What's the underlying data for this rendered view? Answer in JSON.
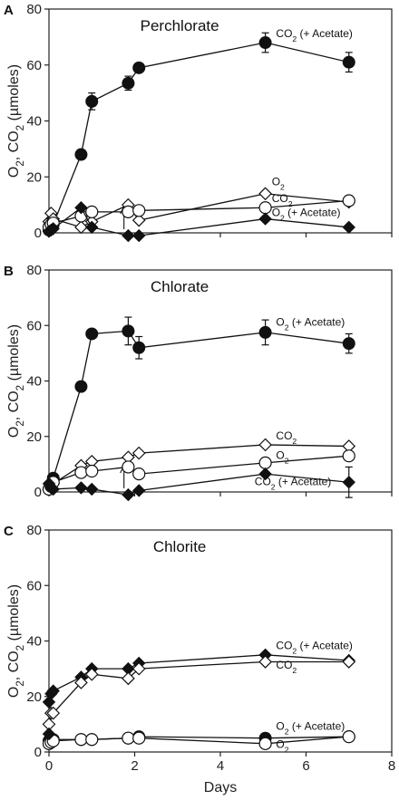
{
  "chart_data": [
    {
      "panel_label": "A",
      "title": "Perchlorate",
      "type": "line",
      "xlabel": "",
      "ylabel": "O₂, CO₂ (µmoles)",
      "xlim": [
        0,
        8
      ],
      "ylim": [
        0,
        80
      ],
      "yticks": [
        0,
        20,
        40,
        60,
        80
      ],
      "xticks": [],
      "arrow_at_day": 1.75,
      "series": [
        {
          "marker": "filled-circle",
          "label": "CO₂ (+ Acetate)",
          "x": [
            0,
            0.05,
            0.1,
            0.75,
            1.0,
            1.85,
            2.1,
            5.05,
            7.0
          ],
          "y": [
            1,
            2,
            3,
            28,
            47,
            53.5,
            59,
            68,
            61
          ],
          "err": [
            0,
            0,
            0,
            0,
            3,
            2.5,
            0,
            3.5,
            3.5
          ]
        },
        {
          "marker": "open-diamond",
          "label": "O₂",
          "x": [
            0,
            0.05,
            0.1,
            0.75,
            1.0,
            1.85,
            2.1,
            5.05,
            7.0
          ],
          "y": [
            4,
            7,
            5,
            2,
            4,
            10,
            4.5,
            14,
            11
          ],
          "err": [
            0,
            0,
            0,
            0,
            0,
            0,
            0,
            0,
            0
          ]
        },
        {
          "marker": "open-circle",
          "label": "CO₂",
          "x": [
            0,
            0.05,
            0.1,
            0.75,
            1.0,
            1.85,
            2.1,
            5.05,
            7.0
          ],
          "y": [
            2,
            3,
            3.5,
            6,
            7.5,
            7.5,
            8,
            9,
            11.5
          ],
          "err": [
            0,
            0,
            0,
            0,
            0,
            0,
            0,
            0,
            0
          ]
        },
        {
          "marker": "filled-diamond",
          "label": "O₂ (+ Acetate)",
          "x": [
            0,
            0.05,
            0.1,
            0.75,
            1.0,
            1.85,
            2.1,
            5.05,
            7.0
          ],
          "y": [
            0.5,
            1,
            1.5,
            9,
            2,
            -1,
            -1,
            5,
            2
          ],
          "err": [
            0,
            0,
            0,
            0,
            0,
            0,
            0,
            0,
            0
          ]
        }
      ],
      "annotations": [
        {
          "text": "CO₂ (+ Acetate)",
          "x": 5.3,
          "y": 70
        },
        {
          "text": "O₂",
          "x": 5.2,
          "y": 17
        },
        {
          "text": "CO₂",
          "x": 5.2,
          "y": 11
        },
        {
          "text": "O₂ (+ Acetate)",
          "x": 5.2,
          "y": 6
        }
      ]
    },
    {
      "panel_label": "B",
      "title": "Chlorate",
      "type": "line",
      "xlabel": "",
      "ylabel": "O₂, CO₂ (µmoles)",
      "xlim": [
        0,
        8
      ],
      "ylim": [
        0,
        80
      ],
      "yticks": [
        0,
        20,
        40,
        60,
        80
      ],
      "xticks": [],
      "arrow_at_day": 1.75,
      "series": [
        {
          "marker": "filled-circle",
          "label": "O₂ (+ Acetate)",
          "x": [
            0,
            0.05,
            0.1,
            0.75,
            1.0,
            1.85,
            2.1,
            5.05,
            7.0
          ],
          "y": [
            1,
            2,
            5,
            38,
            57,
            58,
            52,
            57.5,
            53.5
          ],
          "err": [
            0,
            0,
            0,
            0,
            0,
            5,
            4,
            4.5,
            3.5
          ]
        },
        {
          "marker": "open-diamond",
          "label": "CO₂",
          "x": [
            0,
            0.05,
            0.1,
            0.75,
            1.0,
            1.85,
            2.1,
            5.05,
            7.0
          ],
          "y": [
            1,
            2,
            3,
            9.5,
            11,
            12.5,
            14,
            17,
            16.5
          ],
          "err": [
            0,
            0,
            0,
            0,
            0,
            0,
            0,
            0,
            0
          ]
        },
        {
          "marker": "open-circle",
          "label": "O₂",
          "x": [
            0,
            0.05,
            0.1,
            0.75,
            1.0,
            1.85,
            2.1,
            5.05,
            7.0
          ],
          "y": [
            1,
            2,
            3.5,
            7,
            7.5,
            9,
            6.5,
            10.5,
            13
          ],
          "err": [
            0,
            0,
            0,
            0,
            0,
            0,
            0,
            0,
            0
          ]
        },
        {
          "marker": "filled-diamond",
          "label": "CO₂ (+ Acetate)",
          "x": [
            0,
            0.05,
            0.1,
            0.75,
            1.0,
            1.85,
            2.1,
            5.05,
            7.0
          ],
          "y": [
            3,
            1.5,
            1,
            1.5,
            1,
            -1,
            0.5,
            6.5,
            3.5
          ],
          "err": [
            0,
            0,
            0,
            0,
            0,
            0,
            0,
            0,
            5.5
          ]
        }
      ],
      "annotations": [
        {
          "text": "O₂ (+ Acetate)",
          "x": 5.3,
          "y": 60
        },
        {
          "text": "CO₂",
          "x": 5.3,
          "y": 19
        },
        {
          "text": "O₂",
          "x": 5.3,
          "y": 12
        },
        {
          "text": "CO₂ (+ Acetate)",
          "x": 4.8,
          "y": 2.5
        }
      ]
    },
    {
      "panel_label": "C",
      "title": "Chlorite",
      "type": "line",
      "xlabel": "Days",
      "ylabel": "O₂, CO₂ (µmoles)",
      "xlim": [
        0,
        8
      ],
      "ylim": [
        0,
        80
      ],
      "yticks": [
        0,
        20,
        40,
        60,
        80
      ],
      "xticks": [
        0,
        2,
        4,
        6,
        8
      ],
      "series": [
        {
          "marker": "filled-diamond",
          "label": "CO₂ (+ Acetate)",
          "x": [
            0,
            0.05,
            0.1,
            0.75,
            1.0,
            1.85,
            2.1,
            5.05,
            7.0
          ],
          "y": [
            18,
            21,
            22,
            27,
            30,
            30,
            32,
            35,
            33
          ],
          "err": [
            0,
            0,
            0,
            0,
            0,
            0,
            0,
            0,
            0
          ]
        },
        {
          "marker": "open-diamond",
          "label": "CO₂",
          "x": [
            0,
            0.05,
            0.1,
            0.75,
            1.0,
            1.85,
            2.1,
            5.05,
            7.0
          ],
          "y": [
            10,
            14,
            14,
            25,
            28,
            26.5,
            30,
            32.5,
            32.5
          ],
          "err": [
            0,
            0,
            0,
            0,
            0,
            0,
            0,
            0,
            0
          ]
        },
        {
          "marker": "filled-circle",
          "label": "O₂ (+ Acetate)",
          "x": [
            0,
            0.05,
            0.1,
            0.75,
            1.0,
            1.85,
            2.1,
            5.05,
            7.0
          ],
          "y": [
            4,
            4.5,
            4.5,
            4.5,
            4.5,
            5,
            5.5,
            5,
            5.5
          ],
          "err": [
            0,
            0,
            0,
            0,
            0,
            0,
            0,
            0,
            0
          ]
        },
        {
          "marker": "open-circle",
          "label": "O₂",
          "x": [
            0,
            0.05,
            0.1,
            0.75,
            1.0,
            1.85,
            2.1,
            5.05,
            7.0
          ],
          "y": [
            3,
            3.5,
            4,
            4.5,
            4.5,
            5,
            5,
            3,
            5.5
          ],
          "err": [
            0,
            0,
            0,
            0,
            0,
            0,
            0,
            0,
            0
          ]
        },
        {
          "marker": "filled-diamond",
          "label": "",
          "x": [
            0
          ],
          "y": [
            6.5
          ],
          "err": [
            0
          ]
        }
      ],
      "annotations": [
        {
          "text": "CO₂ (+ Acetate)",
          "x": 5.3,
          "y": 37
        },
        {
          "text": "CO₂",
          "x": 5.3,
          "y": 30
        },
        {
          "text": "O₂ (+ Acetate)",
          "x": 5.3,
          "y": 8
        },
        {
          "text": "O₂",
          "x": 5.3,
          "y": 1.5
        }
      ]
    }
  ]
}
